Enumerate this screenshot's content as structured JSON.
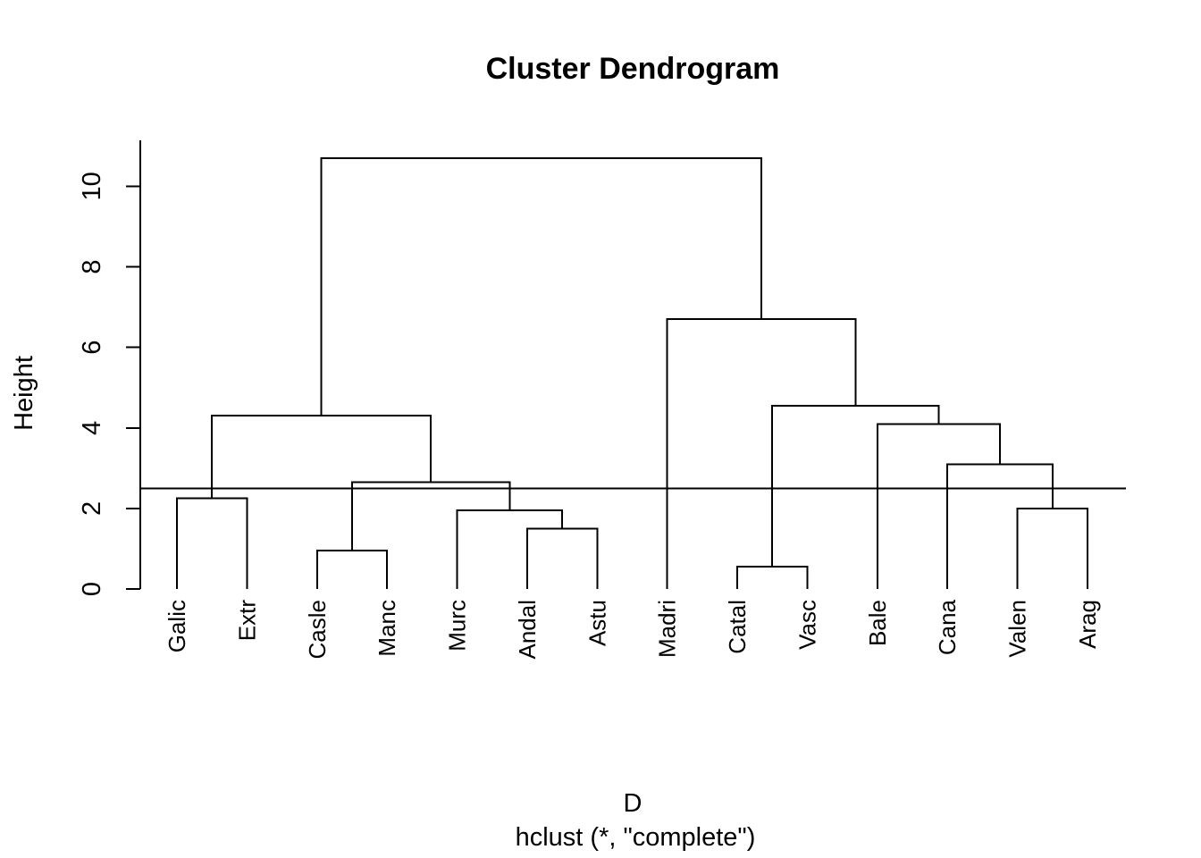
{
  "colors": {
    "background": "#ffffff",
    "line": "#000000",
    "text": "#000000"
  },
  "chart_data": {
    "type": "dendrogram",
    "title": "Cluster Dendrogram",
    "ylabel": "Height",
    "xlabel": "D",
    "subtitle": "hclust (*, \"complete\")",
    "yticks": [
      0,
      2,
      4,
      6,
      8,
      10
    ],
    "ylim": [
      0,
      11.1
    ],
    "grid": false,
    "cut_line_height": 2.5,
    "leaves": [
      "Galic",
      "Extr",
      "Casle",
      "Manc",
      "Murc",
      "Andal",
      "Astu",
      "Madri",
      "Catal",
      "Vasc",
      "Bale",
      "Cana",
      "Valen",
      "Arag"
    ],
    "tree": {
      "height": 10.7,
      "children": [
        {
          "height": 4.3,
          "children": [
            {
              "height": 2.25,
              "children": [
                {
                  "leaf": "Galic"
                },
                {
                  "leaf": "Extr"
                }
              ]
            },
            {
              "height": 2.65,
              "children": [
                {
                  "height": 0.95,
                  "children": [
                    {
                      "leaf": "Casle"
                    },
                    {
                      "leaf": "Manc"
                    }
                  ]
                },
                {
                  "height": 1.95,
                  "children": [
                    {
                      "leaf": "Murc"
                    },
                    {
                      "height": 1.5,
                      "children": [
                        {
                          "leaf": "Andal"
                        },
                        {
                          "leaf": "Astu"
                        }
                      ]
                    }
                  ]
                }
              ]
            }
          ]
        },
        {
          "height": 6.7,
          "children": [
            {
              "leaf": "Madri"
            },
            {
              "height": 4.55,
              "children": [
                {
                  "height": 0.55,
                  "children": [
                    {
                      "leaf": "Catal"
                    },
                    {
                      "leaf": "Vasc"
                    }
                  ]
                },
                {
                  "height": 4.1,
                  "children": [
                    {
                      "leaf": "Bale"
                    },
                    {
                      "height": 3.1,
                      "children": [
                        {
                          "leaf": "Cana"
                        },
                        {
                          "height": 2.0,
                          "children": [
                            {
                              "leaf": "Valen"
                            },
                            {
                              "leaf": "Arag"
                            }
                          ]
                        }
                      ]
                    }
                  ]
                }
              ]
            }
          ]
        }
      ]
    }
  }
}
